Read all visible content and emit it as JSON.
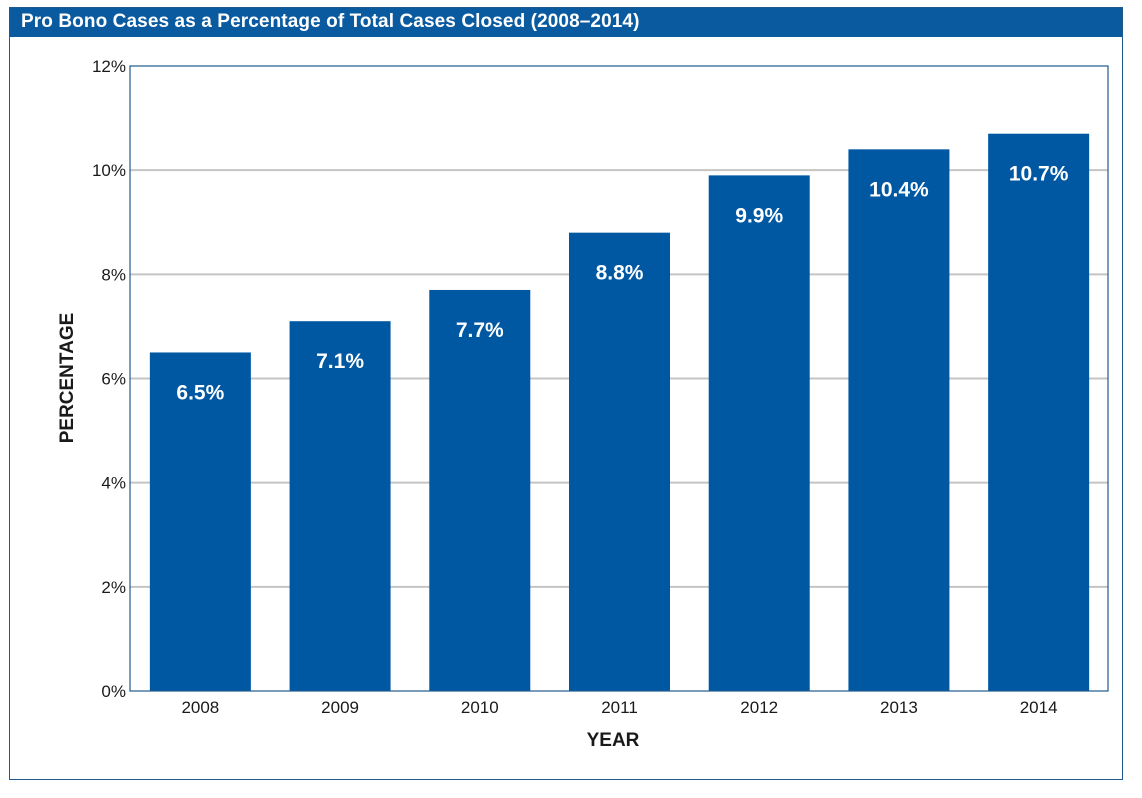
{
  "title": "Pro Bono Cases as a Percentage of Total Cases Closed (2008–2014)",
  "colors": {
    "accent": "#0a5aa0",
    "bar": "#0058a3",
    "grid": "#c4c4c4",
    "border": "#1f5a8c"
  },
  "chart_data": {
    "type": "bar",
    "title": "Pro Bono Cases as a Percentage of Total Cases Closed (2008–2014)",
    "xlabel": "YEAR",
    "ylabel": "PERCENTAGE",
    "categories": [
      "2008",
      "2009",
      "2010",
      "2011",
      "2012",
      "2013",
      "2014"
    ],
    "values": [
      6.5,
      7.1,
      7.7,
      8.8,
      9.9,
      10.4,
      10.7
    ],
    "value_labels": [
      "6.5%",
      "7.1%",
      "7.7%",
      "8.8%",
      "9.9%",
      "10.4%",
      "10.7%"
    ],
    "ylim": [
      0,
      12
    ],
    "yticks": [
      0,
      2,
      4,
      6,
      8,
      10,
      12
    ],
    "ytick_labels": [
      "0%",
      "2%",
      "4%",
      "6%",
      "8%",
      "10%",
      "12%"
    ],
    "grid": true,
    "legend": "none"
  }
}
